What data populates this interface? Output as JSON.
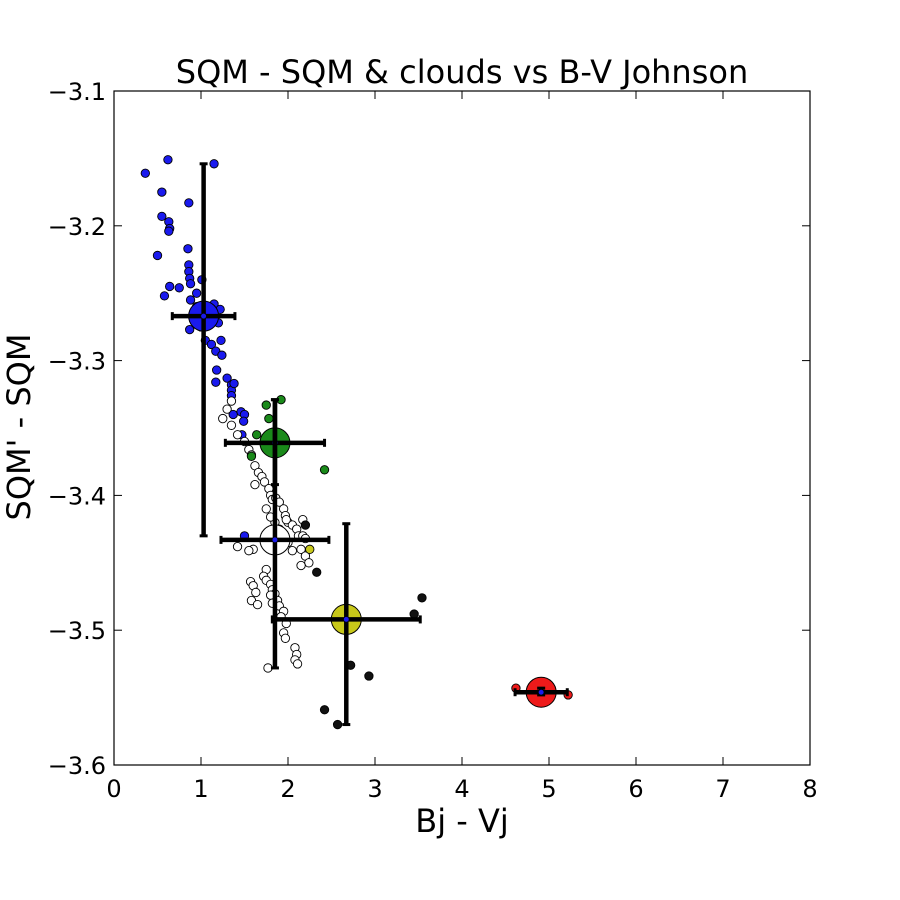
{
  "chart_data": {
    "type": "scatter",
    "title": "SQM - SQM & clouds vs B-V Johnson",
    "xlabel": "Bj - Vj",
    "ylabel": "SQM' - SQM",
    "xlim": [
      0,
      8
    ],
    "ylim": [
      -3.6,
      -3.1
    ],
    "xticks": [
      "0",
      "1",
      "2",
      "3",
      "4",
      "5",
      "6",
      "7",
      "8"
    ],
    "yticks": [
      "−3.1",
      "−3.2",
      "−3.3",
      "−3.4",
      "−3.5",
      "−3.6"
    ],
    "grid": false,
    "legend": "none",
    "series": [
      {
        "color": "#1a1aee",
        "points": [
          [
            0.36,
            -3.161
          ],
          [
            0.62,
            -3.151
          ],
          [
            1.15,
            -3.154
          ],
          [
            0.55,
            -3.175
          ],
          [
            0.55,
            -3.193
          ],
          [
            0.63,
            -3.197
          ],
          [
            0.64,
            -3.202
          ],
          [
            0.63,
            -3.204
          ],
          [
            0.86,
            -3.183
          ],
          [
            0.85,
            -3.217
          ],
          [
            0.5,
            -3.222
          ],
          [
            0.86,
            -3.229
          ],
          [
            0.86,
            -3.234
          ],
          [
            0.87,
            -3.239
          ],
          [
            0.88,
            -3.243
          ],
          [
            1.01,
            -3.24
          ],
          [
            0.64,
            -3.245
          ],
          [
            0.58,
            -3.252
          ],
          [
            0.75,
            -3.246
          ],
          [
            0.88,
            -3.255
          ],
          [
            0.95,
            -3.25
          ],
          [
            0.95,
            -3.26
          ],
          [
            1.0,
            -3.262
          ],
          [
            1.05,
            -3.265
          ],
          [
            1.1,
            -3.268
          ],
          [
            1.15,
            -3.258
          ],
          [
            1.22,
            -3.262
          ],
          [
            1.0,
            -3.275
          ],
          [
            0.87,
            -3.277
          ],
          [
            1.2,
            -3.272
          ],
          [
            1.05,
            -3.285
          ],
          [
            1.12,
            -3.288
          ],
          [
            1.17,
            -3.293
          ],
          [
            1.23,
            -3.285
          ],
          [
            1.24,
            -3.296
          ],
          [
            1.18,
            -3.307
          ],
          [
            1.17,
            -3.316
          ],
          [
            1.3,
            -3.313
          ],
          [
            1.35,
            -3.318
          ],
          [
            1.35,
            -3.322
          ],
          [
            1.35,
            -3.326
          ],
          [
            1.38,
            -3.317
          ],
          [
            1.46,
            -3.338
          ],
          [
            1.5,
            -3.34
          ],
          [
            1.49,
            -3.345
          ],
          [
            1.37,
            -3.34
          ],
          [
            1.47,
            -3.355
          ],
          [
            1.5,
            -3.43
          ]
        ]
      },
      {
        "color": "#ffffff",
        "points": [
          [
            1.3,
            -3.336
          ],
          [
            1.25,
            -3.343
          ],
          [
            1.35,
            -3.348
          ],
          [
            1.35,
            -3.33
          ],
          [
            1.42,
            -3.355
          ],
          [
            1.5,
            -3.36
          ],
          [
            1.55,
            -3.366
          ],
          [
            1.58,
            -3.37
          ],
          [
            1.62,
            -3.378
          ],
          [
            1.66,
            -3.383
          ],
          [
            1.7,
            -3.386
          ],
          [
            1.73,
            -3.39
          ],
          [
            1.78,
            -3.395
          ],
          [
            1.8,
            -3.4
          ],
          [
            1.82,
            -3.403
          ],
          [
            1.86,
            -3.402
          ],
          [
            1.9,
            -3.405
          ],
          [
            1.95,
            -3.41
          ],
          [
            1.97,
            -3.415
          ],
          [
            2.0,
            -3.42
          ],
          [
            2.05,
            -3.422
          ],
          [
            2.1,
            -3.425
          ],
          [
            2.12,
            -3.43
          ],
          [
            2.17,
            -3.43
          ],
          [
            2.2,
            -3.432
          ],
          [
            2.15,
            -3.44
          ],
          [
            2.2,
            -3.445
          ],
          [
            2.24,
            -3.45
          ],
          [
            2.15,
            -3.452
          ],
          [
            2.05,
            -3.441
          ],
          [
            2.0,
            -3.435
          ],
          [
            1.95,
            -3.43
          ],
          [
            1.9,
            -3.425
          ],
          [
            1.85,
            -3.42
          ],
          [
            1.8,
            -3.416
          ],
          [
            1.75,
            -3.41
          ],
          [
            1.62,
            -3.392
          ],
          [
            1.6,
            -3.44
          ],
          [
            1.55,
            -3.441
          ],
          [
            1.42,
            -3.438
          ],
          [
            1.75,
            -3.455
          ],
          [
            1.72,
            -3.46
          ],
          [
            1.75,
            -3.463
          ],
          [
            1.8,
            -3.466
          ],
          [
            1.82,
            -3.47
          ],
          [
            1.85,
            -3.473
          ],
          [
            1.88,
            -3.478
          ],
          [
            1.8,
            -3.474
          ],
          [
            1.82,
            -3.48
          ],
          [
            1.9,
            -3.482
          ],
          [
            1.95,
            -3.486
          ],
          [
            1.92,
            -3.49
          ],
          [
            1.98,
            -3.495
          ],
          [
            1.57,
            -3.464
          ],
          [
            1.6,
            -3.467
          ],
          [
            1.63,
            -3.472
          ],
          [
            1.58,
            -3.478
          ],
          [
            1.65,
            -3.481
          ],
          [
            1.95,
            -3.502
          ],
          [
            1.97,
            -3.506
          ],
          [
            2.08,
            -3.513
          ],
          [
            2.1,
            -3.518
          ],
          [
            2.08,
            -3.522
          ],
          [
            2.11,
            -3.525
          ],
          [
            1.77,
            -3.528
          ],
          [
            2.17,
            -3.418
          ],
          [
            1.98,
            -3.418
          ]
        ]
      },
      {
        "color": "#1a8a1a",
        "points": [
          [
            1.75,
            -3.333
          ],
          [
            1.92,
            -3.329
          ],
          [
            1.78,
            -3.343
          ],
          [
            1.64,
            -3.355
          ],
          [
            1.58,
            -3.371
          ],
          [
            2.42,
            -3.381
          ]
        ]
      },
      {
        "color": "#c8c81a",
        "points": [
          [
            2.25,
            -3.44
          ]
        ]
      },
      {
        "color": "#111111",
        "points": [
          [
            2.2,
            -3.422
          ],
          [
            2.33,
            -3.457
          ],
          [
            2.42,
            -3.559
          ],
          [
            2.57,
            -3.57
          ],
          [
            2.72,
            -3.526
          ],
          [
            2.93,
            -3.534
          ],
          [
            3.45,
            -3.488
          ],
          [
            3.54,
            -3.476
          ]
        ]
      },
      {
        "color": "#ee1a1a",
        "points": [
          [
            4.62,
            -3.543
          ],
          [
            5.22,
            -3.548
          ]
        ]
      }
    ],
    "means": [
      {
        "color": "#1a1aee",
        "x": 1.03,
        "y": -3.267,
        "xerr": 0.36,
        "yerr_low": -3.43,
        "yerr_high": -3.154
      },
      {
        "color": "#1a8a1a",
        "x": 1.85,
        "y": -3.361,
        "xerr": 0.57,
        "yerr_low": -3.392,
        "yerr_high": -3.329
      },
      {
        "color": "#ffffff",
        "x": 1.85,
        "y": -3.433,
        "xerr": 0.62,
        "yerr_low": -3.528,
        "yerr_high": -3.329
      },
      {
        "color": "#c8c81a",
        "x": 2.67,
        "y": -3.492,
        "xerr": 0.85,
        "yerr_low": -3.57,
        "yerr_high": -3.421
      },
      {
        "color": "#ee1a1a",
        "x": 4.91,
        "y": -3.546,
        "xerr": 0.3,
        "yerr_low": -3.548,
        "yerr_high": -3.543
      }
    ]
  }
}
